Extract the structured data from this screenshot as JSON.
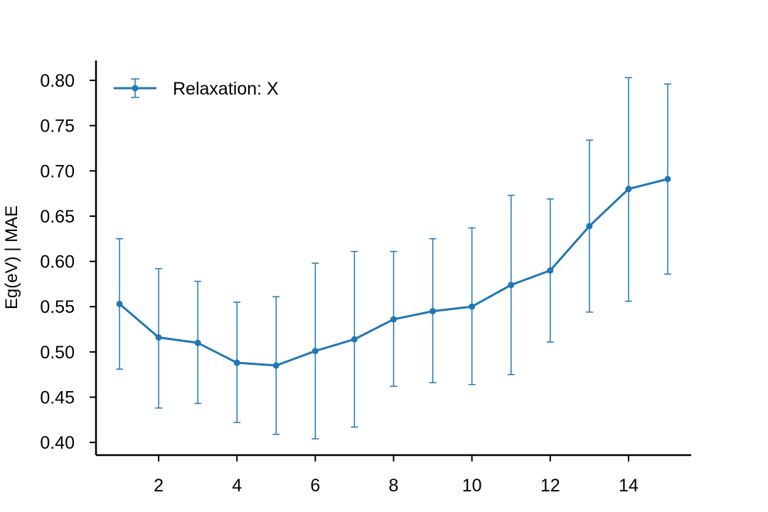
{
  "chart_data": {
    "type": "line",
    "title": "",
    "xlabel": "",
    "ylabel": "Eg(eV) | MAE",
    "x": [
      1,
      2,
      3,
      4,
      5,
      6,
      7,
      8,
      9,
      10,
      11,
      12,
      13,
      14,
      15
    ],
    "xlim": [
      0.4,
      15.6
    ],
    "ylim": [
      0.386,
      0.822
    ],
    "x_ticks": [
      2,
      4,
      6,
      8,
      10,
      12,
      14
    ],
    "x_tick_labels": [
      "2",
      "4",
      "6",
      "8",
      "10",
      "12",
      "14"
    ],
    "y_ticks": [
      0.4,
      0.45,
      0.5,
      0.55,
      0.6,
      0.65,
      0.7,
      0.75,
      0.8
    ],
    "y_tick_labels": [
      "0.40",
      "0.45",
      "0.50",
      "0.55",
      "0.60",
      "0.65",
      "0.70",
      "0.75",
      "0.80"
    ],
    "grid": false,
    "legend": {
      "position": "top-left",
      "entries": [
        "Relaxation: X"
      ]
    },
    "series": [
      {
        "name": "Relaxation: X",
        "color": "#1f77b4",
        "values": [
          0.553,
          0.516,
          0.51,
          0.488,
          0.485,
          0.501,
          0.514,
          0.536,
          0.545,
          0.55,
          0.574,
          0.59,
          0.639,
          0.68,
          0.691
        ],
        "error_low": [
          0.481,
          0.438,
          0.443,
          0.422,
          0.409,
          0.404,
          0.417,
          0.462,
          0.466,
          0.464,
          0.475,
          0.511,
          0.544,
          0.556,
          0.586
        ],
        "error_high": [
          0.625,
          0.592,
          0.578,
          0.555,
          0.561,
          0.598,
          0.611,
          0.611,
          0.625,
          0.637,
          0.673,
          0.669,
          0.734,
          0.803,
          0.796
        ]
      }
    ]
  }
}
